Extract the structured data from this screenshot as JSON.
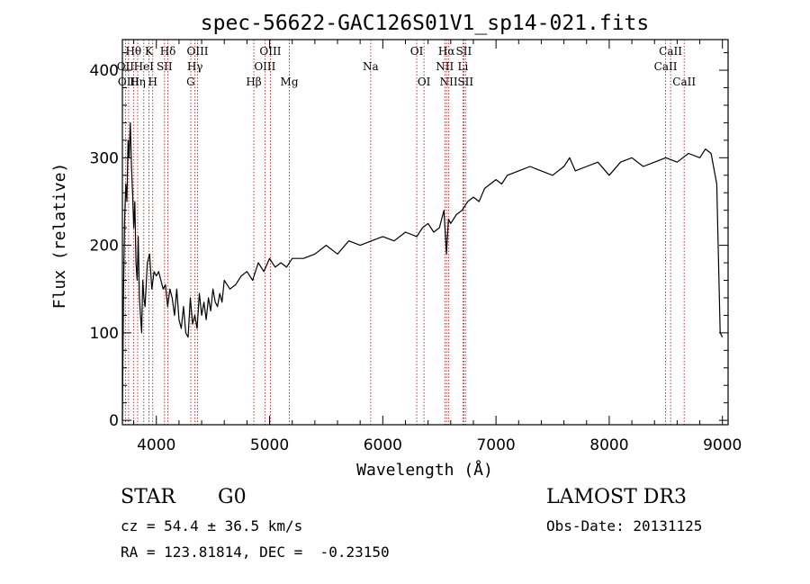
{
  "chart_data": {
    "type": "line",
    "title": "spec-56622-GAC126S01V1_sp14-021.fits",
    "xlabel": "Wavelength (Å)",
    "ylabel": "Flux (relative)",
    "xlim": [
      3700,
      9050
    ],
    "ylim": [
      -5,
      435
    ],
    "xticks": [
      4000,
      5000,
      6000,
      7000,
      8000,
      9000
    ],
    "yticks": [
      0,
      100,
      200,
      300,
      400
    ],
    "series": [
      {
        "name": "spectrum",
        "x": [
          3700,
          3710,
          3720,
          3730,
          3740,
          3750,
          3760,
          3770,
          3780,
          3790,
          3800,
          3810,
          3820,
          3830,
          3840,
          3850,
          3860,
          3870,
          3880,
          3890,
          3900,
          3920,
          3940,
          3960,
          3980,
          4000,
          4020,
          4040,
          4060,
          4080,
          4100,
          4120,
          4140,
          4160,
          4180,
          4200,
          4220,
          4240,
          4260,
          4280,
          4300,
          4320,
          4340,
          4360,
          4380,
          4400,
          4420,
          4440,
          4460,
          4480,
          4500,
          4520,
          4540,
          4560,
          4580,
          4600,
          4650,
          4700,
          4750,
          4800,
          4850,
          4900,
          4950,
          5000,
          5050,
          5100,
          5150,
          5200,
          5300,
          5400,
          5500,
          5600,
          5700,
          5800,
          5900,
          6000,
          6100,
          6200,
          6300,
          6350,
          6400,
          6450,
          6500,
          6540,
          6563,
          6580,
          6600,
          6650,
          6700,
          6750,
          6800,
          6850,
          6900,
          6950,
          7000,
          7050,
          7100,
          7200,
          7300,
          7400,
          7500,
          7600,
          7650,
          7700,
          7800,
          7900,
          8000,
          8100,
          8200,
          8300,
          8400,
          8500,
          8600,
          8700,
          8800,
          8850,
          8900,
          8950,
          8980,
          9000
        ],
        "y": [
          0,
          150,
          230,
          270,
          250,
          320,
          300,
          340,
          290,
          260,
          220,
          250,
          180,
          160,
          210,
          140,
          120,
          100,
          160,
          140,
          130,
          180,
          190,
          150,
          170,
          165,
          170,
          160,
          150,
          155,
          130,
          150,
          140,
          120,
          150,
          115,
          105,
          130,
          100,
          95,
          140,
          110,
          120,
          105,
          145,
          120,
          135,
          115,
          140,
          125,
          150,
          135,
          130,
          145,
          135,
          160,
          150,
          155,
          165,
          170,
          160,
          180,
          170,
          185,
          175,
          180,
          175,
          185,
          185,
          190,
          200,
          190,
          205,
          200,
          205,
          210,
          205,
          215,
          210,
          220,
          225,
          215,
          220,
          240,
          190,
          230,
          225,
          235,
          240,
          250,
          255,
          250,
          265,
          270,
          275,
          270,
          280,
          285,
          290,
          285,
          280,
          290,
          300,
          285,
          290,
          295,
          280,
          295,
          300,
          290,
          295,
          300,
          295,
          305,
          300,
          310,
          305,
          270,
          100,
          95
        ]
      }
    ],
    "lines": [
      {
        "name": "Hθ",
        "wl": 3798,
        "row": 0
      },
      {
        "name": "OII",
        "wl": 3727,
        "row": 1
      },
      {
        "name": "OIII",
        "wl": 3755,
        "row": 2
      },
      {
        "name": "Hη",
        "wl": 3835,
        "row": 2
      },
      {
        "name": "HeI",
        "wl": 3889,
        "row": 1
      },
      {
        "name": "K",
        "wl": 3934,
        "row": 0
      },
      {
        "name": "H",
        "wl": 3968,
        "row": 2
      },
      {
        "name": "SII",
        "wl": 4072,
        "row": 1
      },
      {
        "name": "Hδ",
        "wl": 4102,
        "row": 0
      },
      {
        "name": "OIII",
        "wl": 4364,
        "row": 0
      },
      {
        "name": "Hγ",
        "wl": 4341,
        "row": 1
      },
      {
        "name": "G",
        "wl": 4304,
        "row": 2
      },
      {
        "name": "Hβ",
        "wl": 4861,
        "row": 2
      },
      {
        "name": "OIII",
        "wl": 5007,
        "row": 0
      },
      {
        "name": "OIII",
        "wl": 4959,
        "row": 1
      },
      {
        "name": "Mg",
        "wl": 5175,
        "row": 2
      },
      {
        "name": "Na",
        "wl": 5893,
        "row": 1
      },
      {
        "name": "OI",
        "wl": 6300,
        "row": 0
      },
      {
        "name": "OI",
        "wl": 6364,
        "row": 2
      },
      {
        "name": "Hα",
        "wl": 6563,
        "row": 0
      },
      {
        "name": "NII",
        "wl": 6548,
        "row": 1
      },
      {
        "name": "NII",
        "wl": 6583,
        "row": 2
      },
      {
        "name": "SII",
        "wl": 6716,
        "row": 0
      },
      {
        "name": "Li",
        "wl": 6708,
        "row": 1
      },
      {
        "name": "SII",
        "wl": 6731,
        "row": 2
      },
      {
        "name": "CaII",
        "wl": 8542,
        "row": 0
      },
      {
        "name": "CaII",
        "wl": 8498,
        "row": 1
      },
      {
        "name": "CaII",
        "wl": 8662,
        "row": 2
      }
    ]
  },
  "info": {
    "obj_class": "STAR",
    "subclass": "G0",
    "survey": "LAMOST DR3",
    "cz": "cz = 54.4 ± 36.5 km/s",
    "obs_date": "Obs-Date: 20131125",
    "radec": "RA = 123.81814, DEC =  -0.23150"
  },
  "colors": {
    "spectrum": "#000000",
    "line_markers": "#b22222"
  }
}
